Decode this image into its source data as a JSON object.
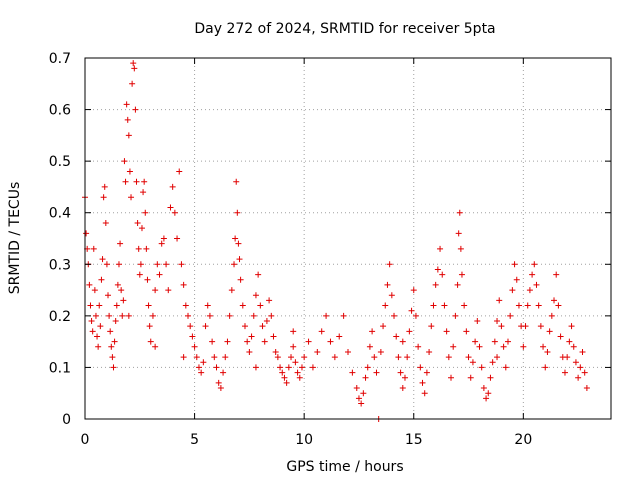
{
  "chart_data": {
    "type": "scatter",
    "title": "Day 272 of 2024, SRMTID for receiver 5pta",
    "xlabel": "GPS time / hours",
    "ylabel": "SRMTID / TECUs",
    "xlim": [
      0,
      24
    ],
    "ylim": [
      0,
      0.7
    ],
    "xticks": [
      0,
      5,
      10,
      15,
      20
    ],
    "xtick_labels": [
      "0",
      "5",
      "10",
      "15",
      "20"
    ],
    "yticks": [
      0,
      0.1,
      0.2,
      0.3,
      0.4,
      0.5,
      0.6,
      0.7
    ],
    "ytick_labels": [
      "0",
      "0.1",
      "0.2",
      "0.3",
      "0.4",
      "0.5",
      "0.6",
      "0.7"
    ],
    "grid": true,
    "marker": "plus",
    "series": [
      {
        "name": "SRMTID",
        "color": "#e00000",
        "points": [
          [
            0.0,
            0.43
          ],
          [
            0.05,
            0.36
          ],
          [
            0.1,
            0.33
          ],
          [
            0.15,
            0.3
          ],
          [
            0.2,
            0.26
          ],
          [
            0.25,
            0.22
          ],
          [
            0.3,
            0.19
          ],
          [
            0.35,
            0.17
          ],
          [
            0.4,
            0.33
          ],
          [
            0.45,
            0.25
          ],
          [
            0.5,
            0.2
          ],
          [
            0.55,
            0.16
          ],
          [
            0.6,
            0.14
          ],
          [
            0.65,
            0.22
          ],
          [
            0.7,
            0.18
          ],
          [
            0.75,
            0.27
          ],
          [
            0.8,
            0.31
          ],
          [
            0.85,
            0.43
          ],
          [
            0.9,
            0.45
          ],
          [
            0.95,
            0.38
          ],
          [
            1.0,
            0.3
          ],
          [
            1.05,
            0.24
          ],
          [
            1.1,
            0.2
          ],
          [
            1.15,
            0.17
          ],
          [
            1.2,
            0.14
          ],
          [
            1.25,
            0.12
          ],
          [
            1.3,
            0.1
          ],
          [
            1.35,
            0.15
          ],
          [
            1.4,
            0.19
          ],
          [
            1.45,
            0.22
          ],
          [
            1.5,
            0.26
          ],
          [
            1.55,
            0.3
          ],
          [
            1.6,
            0.34
          ],
          [
            1.65,
            0.25
          ],
          [
            1.7,
            0.2
          ],
          [
            1.75,
            0.23
          ],
          [
            1.8,
            0.5
          ],
          [
            1.85,
            0.46
          ],
          [
            1.9,
            0.61
          ],
          [
            1.95,
            0.58
          ],
          [
            2.0,
            0.55
          ],
          [
            2.05,
            0.48
          ],
          [
            2.1,
            0.43
          ],
          [
            2.15,
            0.65
          ],
          [
            2.2,
            0.69
          ],
          [
            2.25,
            0.68
          ],
          [
            2.3,
            0.6
          ],
          [
            2.35,
            0.46
          ],
          [
            2.4,
            0.38
          ],
          [
            2.45,
            0.33
          ],
          [
            2.5,
            0.28
          ],
          [
            2.55,
            0.3
          ],
          [
            2.6,
            0.37
          ],
          [
            2.65,
            0.44
          ],
          [
            2.7,
            0.46
          ],
          [
            2.75,
            0.4
          ],
          [
            2.8,
            0.33
          ],
          [
            2.85,
            0.27
          ],
          [
            2.9,
            0.22
          ],
          [
            2.95,
            0.18
          ],
          [
            3.0,
            0.15
          ],
          [
            3.1,
            0.2
          ],
          [
            3.2,
            0.25
          ],
          [
            3.3,
            0.3
          ],
          [
            3.4,
            0.28
          ],
          [
            3.5,
            0.34
          ],
          [
            3.6,
            0.35
          ],
          [
            3.7,
            0.3
          ],
          [
            3.8,
            0.25
          ],
          [
            3.9,
            0.41
          ],
          [
            4.0,
            0.45
          ],
          [
            4.1,
            0.4
          ],
          [
            4.2,
            0.35
          ],
          [
            4.3,
            0.48
          ],
          [
            4.4,
            0.3
          ],
          [
            4.5,
            0.26
          ],
          [
            4.6,
            0.22
          ],
          [
            4.7,
            0.2
          ],
          [
            4.8,
            0.18
          ],
          [
            4.9,
            0.16
          ],
          [
            5.0,
            0.14
          ],
          [
            5.1,
            0.12
          ],
          [
            5.2,
            0.1
          ],
          [
            5.3,
            0.09
          ],
          [
            5.4,
            0.11
          ],
          [
            5.5,
            0.18
          ],
          [
            5.6,
            0.22
          ],
          [
            5.7,
            0.2
          ],
          [
            5.8,
            0.15
          ],
          [
            5.9,
            0.12
          ],
          [
            6.0,
            0.1
          ],
          [
            6.1,
            0.07
          ],
          [
            6.2,
            0.06
          ],
          [
            6.3,
            0.09
          ],
          [
            6.4,
            0.12
          ],
          [
            6.5,
            0.15
          ],
          [
            6.6,
            0.2
          ],
          [
            6.7,
            0.25
          ],
          [
            6.8,
            0.3
          ],
          [
            6.85,
            0.35
          ],
          [
            6.9,
            0.46
          ],
          [
            6.95,
            0.4
          ],
          [
            7.0,
            0.34
          ],
          [
            7.05,
            0.31
          ],
          [
            7.1,
            0.27
          ],
          [
            7.2,
            0.22
          ],
          [
            7.3,
            0.18
          ],
          [
            7.4,
            0.15
          ],
          [
            7.5,
            0.13
          ],
          [
            7.6,
            0.16
          ],
          [
            7.7,
            0.2
          ],
          [
            7.8,
            0.24
          ],
          [
            7.9,
            0.28
          ],
          [
            8.0,
            0.22
          ],
          [
            8.1,
            0.18
          ],
          [
            8.2,
            0.15
          ],
          [
            8.3,
            0.19
          ],
          [
            8.4,
            0.23
          ],
          [
            8.5,
            0.2
          ],
          [
            8.6,
            0.16
          ],
          [
            8.7,
            0.13
          ],
          [
            8.8,
            0.12
          ],
          [
            8.9,
            0.1
          ],
          [
            9.0,
            0.09
          ],
          [
            9.1,
            0.08
          ],
          [
            9.2,
            0.07
          ],
          [
            9.3,
            0.1
          ],
          [
            9.4,
            0.12
          ],
          [
            9.5,
            0.14
          ],
          [
            9.6,
            0.11
          ],
          [
            9.7,
            0.09
          ],
          [
            9.8,
            0.08
          ],
          [
            9.9,
            0.1
          ],
          [
            10.0,
            0.12
          ],
          [
            10.2,
            0.15
          ],
          [
            10.4,
            0.1
          ],
          [
            10.6,
            0.13
          ],
          [
            10.8,
            0.17
          ],
          [
            11.0,
            0.2
          ],
          [
            11.2,
            0.15
          ],
          [
            11.4,
            0.12
          ],
          [
            11.6,
            0.16
          ],
          [
            11.8,
            0.2
          ],
          [
            12.0,
            0.13
          ],
          [
            12.2,
            0.09
          ],
          [
            12.4,
            0.06
          ],
          [
            12.5,
            0.04
          ],
          [
            12.6,
            0.03
          ],
          [
            12.7,
            0.05
          ],
          [
            12.8,
            0.08
          ],
          [
            12.9,
            0.1
          ],
          [
            13.0,
            0.14
          ],
          [
            13.1,
            0.17
          ],
          [
            13.2,
            0.12
          ],
          [
            13.3,
            0.09
          ],
          [
            13.4,
            0.0
          ],
          [
            13.5,
            0.13
          ],
          [
            13.6,
            0.18
          ],
          [
            13.7,
            0.22
          ],
          [
            13.8,
            0.26
          ],
          [
            13.9,
            0.3
          ],
          [
            14.0,
            0.24
          ],
          [
            14.1,
            0.2
          ],
          [
            14.2,
            0.16
          ],
          [
            14.3,
            0.12
          ],
          [
            14.4,
            0.09
          ],
          [
            14.5,
            0.06
          ],
          [
            14.6,
            0.08
          ],
          [
            14.7,
            0.12
          ],
          [
            14.8,
            0.17
          ],
          [
            14.9,
            0.21
          ],
          [
            15.0,
            0.25
          ],
          [
            15.1,
            0.2
          ],
          [
            15.2,
            0.14
          ],
          [
            15.3,
            0.1
          ],
          [
            15.4,
            0.07
          ],
          [
            15.5,
            0.05
          ],
          [
            15.6,
            0.09
          ],
          [
            15.7,
            0.13
          ],
          [
            15.8,
            0.18
          ],
          [
            15.9,
            0.22
          ],
          [
            16.0,
            0.26
          ],
          [
            16.1,
            0.29
          ],
          [
            16.2,
            0.33
          ],
          [
            16.3,
            0.28
          ],
          [
            16.4,
            0.22
          ],
          [
            16.5,
            0.17
          ],
          [
            16.6,
            0.12
          ],
          [
            16.7,
            0.08
          ],
          [
            16.8,
            0.14
          ],
          [
            16.9,
            0.2
          ],
          [
            17.0,
            0.26
          ],
          [
            17.05,
            0.36
          ],
          [
            17.1,
            0.4
          ],
          [
            17.15,
            0.33
          ],
          [
            17.2,
            0.28
          ],
          [
            17.3,
            0.22
          ],
          [
            17.4,
            0.17
          ],
          [
            17.5,
            0.12
          ],
          [
            17.6,
            0.08
          ],
          [
            17.7,
            0.11
          ],
          [
            17.8,
            0.15
          ],
          [
            17.9,
            0.19
          ],
          [
            18.0,
            0.14
          ],
          [
            18.1,
            0.1
          ],
          [
            18.2,
            0.06
          ],
          [
            18.3,
            0.04
          ],
          [
            18.4,
            0.05
          ],
          [
            18.5,
            0.08
          ],
          [
            18.6,
            0.11
          ],
          [
            18.7,
            0.15
          ],
          [
            18.8,
            0.19
          ],
          [
            18.9,
            0.23
          ],
          [
            19.0,
            0.18
          ],
          [
            19.1,
            0.14
          ],
          [
            19.2,
            0.1
          ],
          [
            19.3,
            0.15
          ],
          [
            19.4,
            0.2
          ],
          [
            19.5,
            0.25
          ],
          [
            19.6,
            0.3
          ],
          [
            19.7,
            0.27
          ],
          [
            19.8,
            0.22
          ],
          [
            19.9,
            0.18
          ],
          [
            20.0,
            0.14
          ],
          [
            20.1,
            0.18
          ],
          [
            20.2,
            0.22
          ],
          [
            20.3,
            0.25
          ],
          [
            20.4,
            0.28
          ],
          [
            20.5,
            0.3
          ],
          [
            20.6,
            0.26
          ],
          [
            20.7,
            0.22
          ],
          [
            20.8,
            0.18
          ],
          [
            20.9,
            0.14
          ],
          [
            21.0,
            0.1
          ],
          [
            21.1,
            0.13
          ],
          [
            21.2,
            0.17
          ],
          [
            21.3,
            0.2
          ],
          [
            21.4,
            0.23
          ],
          [
            21.5,
            0.28
          ],
          [
            21.6,
            0.22
          ],
          [
            21.7,
            0.16
          ],
          [
            21.8,
            0.12
          ],
          [
            21.9,
            0.09
          ],
          [
            22.0,
            0.12
          ],
          [
            22.1,
            0.15
          ],
          [
            22.2,
            0.18
          ],
          [
            22.3,
            0.14
          ],
          [
            22.4,
            0.11
          ],
          [
            22.5,
            0.08
          ],
          [
            22.6,
            0.1
          ],
          [
            22.7,
            0.13
          ],
          [
            22.8,
            0.09
          ],
          [
            22.9,
            0.06
          ],
          [
            2.0,
            0.2
          ],
          [
            3.2,
            0.14
          ],
          [
            4.5,
            0.12
          ],
          [
            7.8,
            0.1
          ],
          [
            9.5,
            0.17
          ],
          [
            14.5,
            0.15
          ],
          [
            18.8,
            0.12
          ]
        ]
      }
    ]
  }
}
